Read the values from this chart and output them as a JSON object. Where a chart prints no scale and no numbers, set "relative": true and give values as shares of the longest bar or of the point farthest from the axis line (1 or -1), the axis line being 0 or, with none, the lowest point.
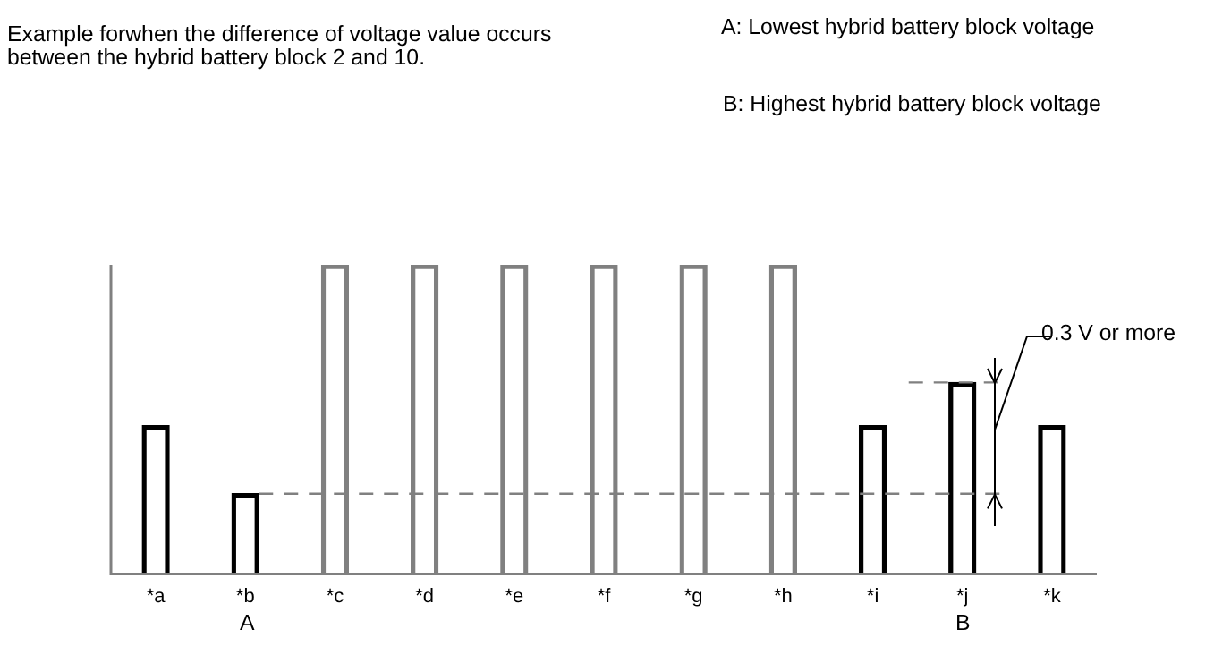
{
  "chart_data": {
    "type": "bar",
    "relative": true,
    "categories": [
      "*a",
      "*b",
      "*c",
      "*d",
      "*e",
      "*f",
      "*g",
      "*h",
      "*i",
      "*j",
      "*k"
    ],
    "values": [
      0.48,
      0.26,
      1,
      1,
      1,
      1,
      1,
      1,
      0.48,
      0.62,
      0.48
    ],
    "colors": [
      "#000000",
      "#000000",
      "#808080",
      "#808080",
      "#808080",
      "#808080",
      "#808080",
      "#808080",
      "#000000",
      "#000000",
      "#000000"
    ],
    "ref_lines": [
      {
        "axis": "y",
        "value": 0.26,
        "color": "#808080",
        "line_style": "dashed"
      },
      {
        "axis": "y",
        "value": 0.62,
        "color": "#808080",
        "line_style": "dashed"
      }
    ],
    "annotations": [
      "Example forwhen the difference of voltage value occurs\nbetween the hybrid battery block 2 and 10.",
      "A: Lowest hybrid battery block voltage",
      "B: Highest hybrid battery block voltage",
      "0.3 V or more",
      "A",
      "B"
    ],
    "grid": false,
    "legend": false
  }
}
